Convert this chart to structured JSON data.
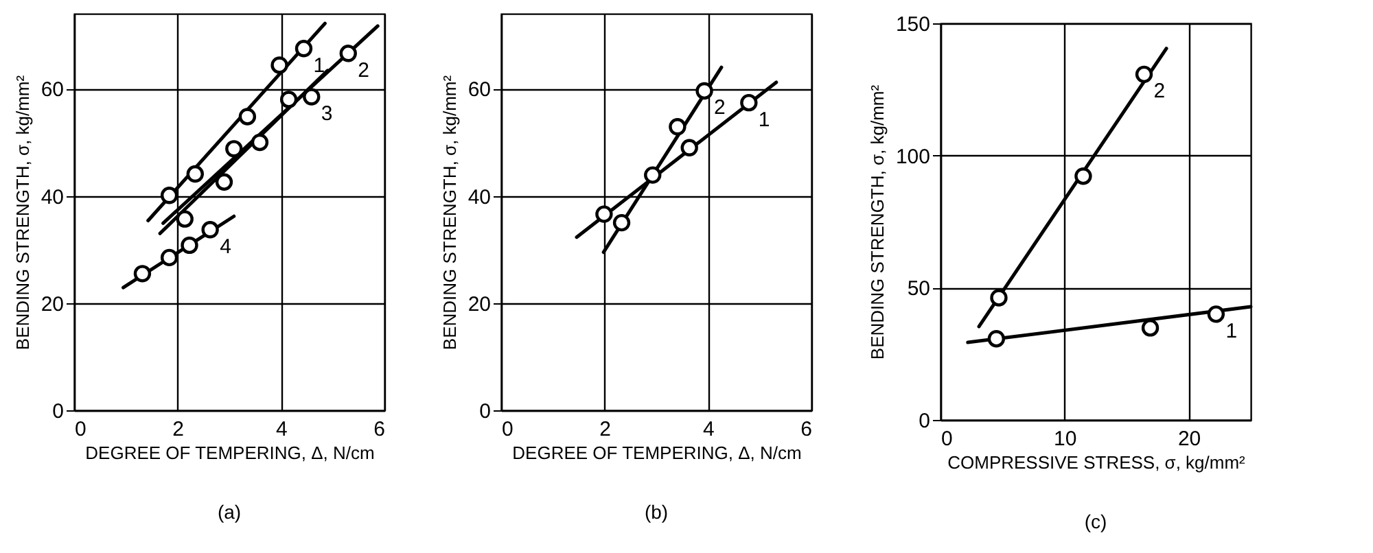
{
  "chart_data": [
    {
      "type": "scatter",
      "title": "(a)",
      "xlabel": "DEGREE OF TEMPERING, Δ, N/cm",
      "ylabel": "BENDING STRENGTH, σ, kg/mm²",
      "xlim": [
        0,
        6
      ],
      "ylim": [
        0,
        74
      ],
      "xticks": [
        0,
        2,
        4,
        6
      ],
      "yticks": [
        0,
        20,
        40,
        60
      ],
      "grid": true,
      "marker": "circle",
      "series": [
        {
          "type": "line",
          "marker": "none",
          "color": "#000000",
          "x": [
            1.43,
            4.85
          ],
          "values": [
            35.4,
            72.2
          ]
        },
        {
          "type": "line",
          "marker": "none",
          "color": "#000000",
          "x": [
            1.72,
            5.87
          ],
          "values": [
            34.9,
            71.7
          ]
        },
        {
          "type": "line",
          "marker": "none",
          "color": "#000000",
          "x": [
            1.66,
            4.9
          ],
          "values": [
            33,
            63.4
          ]
        },
        {
          "type": "line",
          "marker": "none",
          "color": "#000000",
          "x": [
            0.95,
            3.09
          ],
          "values": [
            22.9,
            36.2
          ]
        },
        {
          "name": "1",
          "color": "#000000",
          "x": [
            2.34,
            3.35,
            3.97,
            4.44
          ],
          "values": [
            44.1,
            54.8,
            64.4,
            67.5
          ]
        },
        {
          "name": "2",
          "color": "#000000",
          "x": [
            1.84,
            3.09,
            4.15,
            5.3
          ],
          "values": [
            40.1,
            48.8,
            58,
            66.6
          ]
        },
        {
          "name": "3",
          "color": "#000000",
          "x": [
            2.14,
            2.9,
            3.59,
            4.59
          ],
          "values": [
            35.7,
            42.6,
            50,
            58.5
          ]
        },
        {
          "name": "4",
          "color": "#000000",
          "x": [
            1.32,
            1.84,
            2.23,
            2.63
          ],
          "values": [
            25.5,
            28.5,
            30.8,
            33.7
          ]
        }
      ]
    },
    {
      "type": "scatter",
      "title": "(b)",
      "xlabel": "DEGREE OF TEMPERING, Δ, N/cm",
      "ylabel": "BENDING STRENGTH, σ, kg/mm²",
      "xlim": [
        0,
        6
      ],
      "ylim": [
        0,
        74
      ],
      "xticks": [
        0,
        2,
        4,
        6
      ],
      "yticks": [
        0,
        20,
        40,
        60
      ],
      "grid": true,
      "marker": "circle",
      "series": [
        {
          "type": "line",
          "marker": "none",
          "color": "#000000",
          "x": [
            1.46,
            5.32
          ],
          "values": [
            32.3,
            61.2
          ]
        },
        {
          "type": "line",
          "marker": "none",
          "color": "#000000",
          "x": [
            1.98,
            4.26
          ],
          "values": [
            29.5,
            64
          ]
        },
        {
          "name": "1",
          "color": "#000000",
          "x": [
            1.99,
            2.93,
            3.64,
            4.79
          ],
          "values": [
            36.6,
            43.9,
            49,
            57.4
          ]
        },
        {
          "name": "2",
          "color": "#000000",
          "x": [
            2.33,
            3.41,
            3.93
          ],
          "values": [
            35,
            52.9,
            59.6
          ]
        }
      ]
    },
    {
      "type": "scatter",
      "title": "(c)",
      "xlabel": "COMPRESSIVE STRESS, σ, kg/mm²",
      "ylabel": "BENDING STRENGTH, σ, kg/mm²",
      "xlim": [
        0,
        25
      ],
      "ylim": [
        0,
        150
      ],
      "xticks": [
        0,
        10,
        20
      ],
      "yticks": [
        0,
        50,
        100,
        150
      ],
      "grid": true,
      "marker": "circle",
      "series": [
        {
          "type": "line",
          "marker": "none",
          "color": "#000000",
          "x": [
            2.2,
            25
          ],
          "values": [
            29.3,
            42.8
          ]
        },
        {
          "type": "line",
          "marker": "none",
          "color": "#000000",
          "x": [
            3.1,
            18.2
          ],
          "values": [
            35.3,
            140.5
          ]
        },
        {
          "name": "1",
          "color": "#000000",
          "x": [
            4.5,
            16.9,
            22.2
          ],
          "values": [
            30.7,
            34.8,
            40
          ]
        },
        {
          "name": "2",
          "color": "#000000",
          "x": [
            4.7,
            11.5,
            16.4
          ],
          "values": [
            46.2,
            92.2,
            130.7
          ]
        }
      ]
    }
  ]
}
